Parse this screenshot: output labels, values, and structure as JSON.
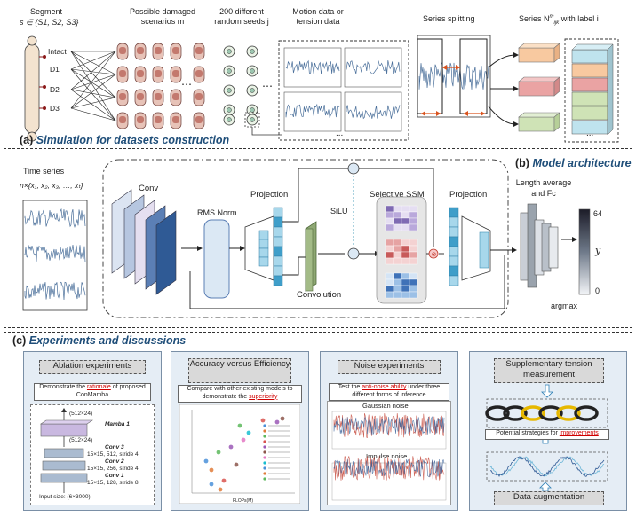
{
  "section_a": {
    "label": "(a)",
    "title": "Simulation for datasets construction",
    "segment_label": "Segment",
    "segment_set": "s ∈ {S1, S2, S3}",
    "scenario_label": "Possible damaged scenarios m",
    "seed_label": "200 different random seeds j",
    "motion_label": "Motion data or tension data",
    "splitting_label": "Series splitting",
    "series_label": "Series N",
    "series_label_sup": "m",
    "series_label_sub": "ijk",
    "series_label_tail": "with label i",
    "states": [
      "Intact",
      "D1",
      "D2",
      "D3"
    ],
    "dots": "...",
    "dots_small": "⋯"
  },
  "section_b": {
    "label": "(b)",
    "title": "Model architecture",
    "time_series_label": "Time series",
    "time_series_formula": "n×{x₁, x₂, x₃, …, xₜ}",
    "conv_label": "Conv",
    "rmsnorm_label": "RMS Norm",
    "projection_label": "Projection",
    "projection2_label": "Projection",
    "silu_label": "SiLU",
    "ssm_label": "Selective SSM",
    "convolution_label": "Convolution",
    "length_label": "Length average and Fc",
    "argmax_label": "argmax",
    "colorbar_max": "64",
    "colorbar_min": "0",
    "colorbar_symbol": "y"
  },
  "section_c": {
    "label": "(c)",
    "title": "Experiments and discussions",
    "panel1": {
      "head": "Ablation experiments",
      "note_pre": "Demonstrate the ",
      "note_red": "rationale",
      "note_post": " of proposed ConMamba",
      "top_dim": "(512×24)",
      "mamba": "Mamba 1",
      "mid_dim": "(512×24)",
      "conv3": "Conv 3",
      "conv3_spec": "15×15, 512, stride 4",
      "conv2": "Conv 2",
      "conv2_spec": "15×15, 256, stride 4",
      "conv1": "Conv 1",
      "conv1_spec": "15×15, 128, stride 8",
      "input": "Input size: (6×3000)"
    },
    "panel2": {
      "head": "Accuracy versus Efficiency",
      "note_pre": "Compare with other existing models to demonstrate the ",
      "note_red": "superiority",
      "xlabel": "FLOPs(M)"
    },
    "panel3": {
      "head": "Noise experiments",
      "note_pre": "Test the ",
      "note_red": "anti-noise ability",
      "note_post": " under three different forms of inference",
      "gaussian": "Gaussian noise",
      "impulse": "Impulse noise"
    },
    "panel4": {
      "head": "Supplementary tension measurement",
      "note_pre": "Potential strategies for ",
      "note_red": "improvements",
      "foot": "Data augmentation"
    }
  },
  "colors": {
    "title_blue": "#1f4e79",
    "panel_bg": "#e5edf5",
    "signal_blue": "#4a6f9a",
    "conv_blue": "#5b7fb5",
    "proj_blue": "#6cb6d8",
    "conv_green": "#8fa874",
    "ssm_purple": "#7f6ab3",
    "ssm_red": "#c85a5a",
    "ssm_blue": "#3f72b8",
    "accent_red": "#d00000"
  }
}
